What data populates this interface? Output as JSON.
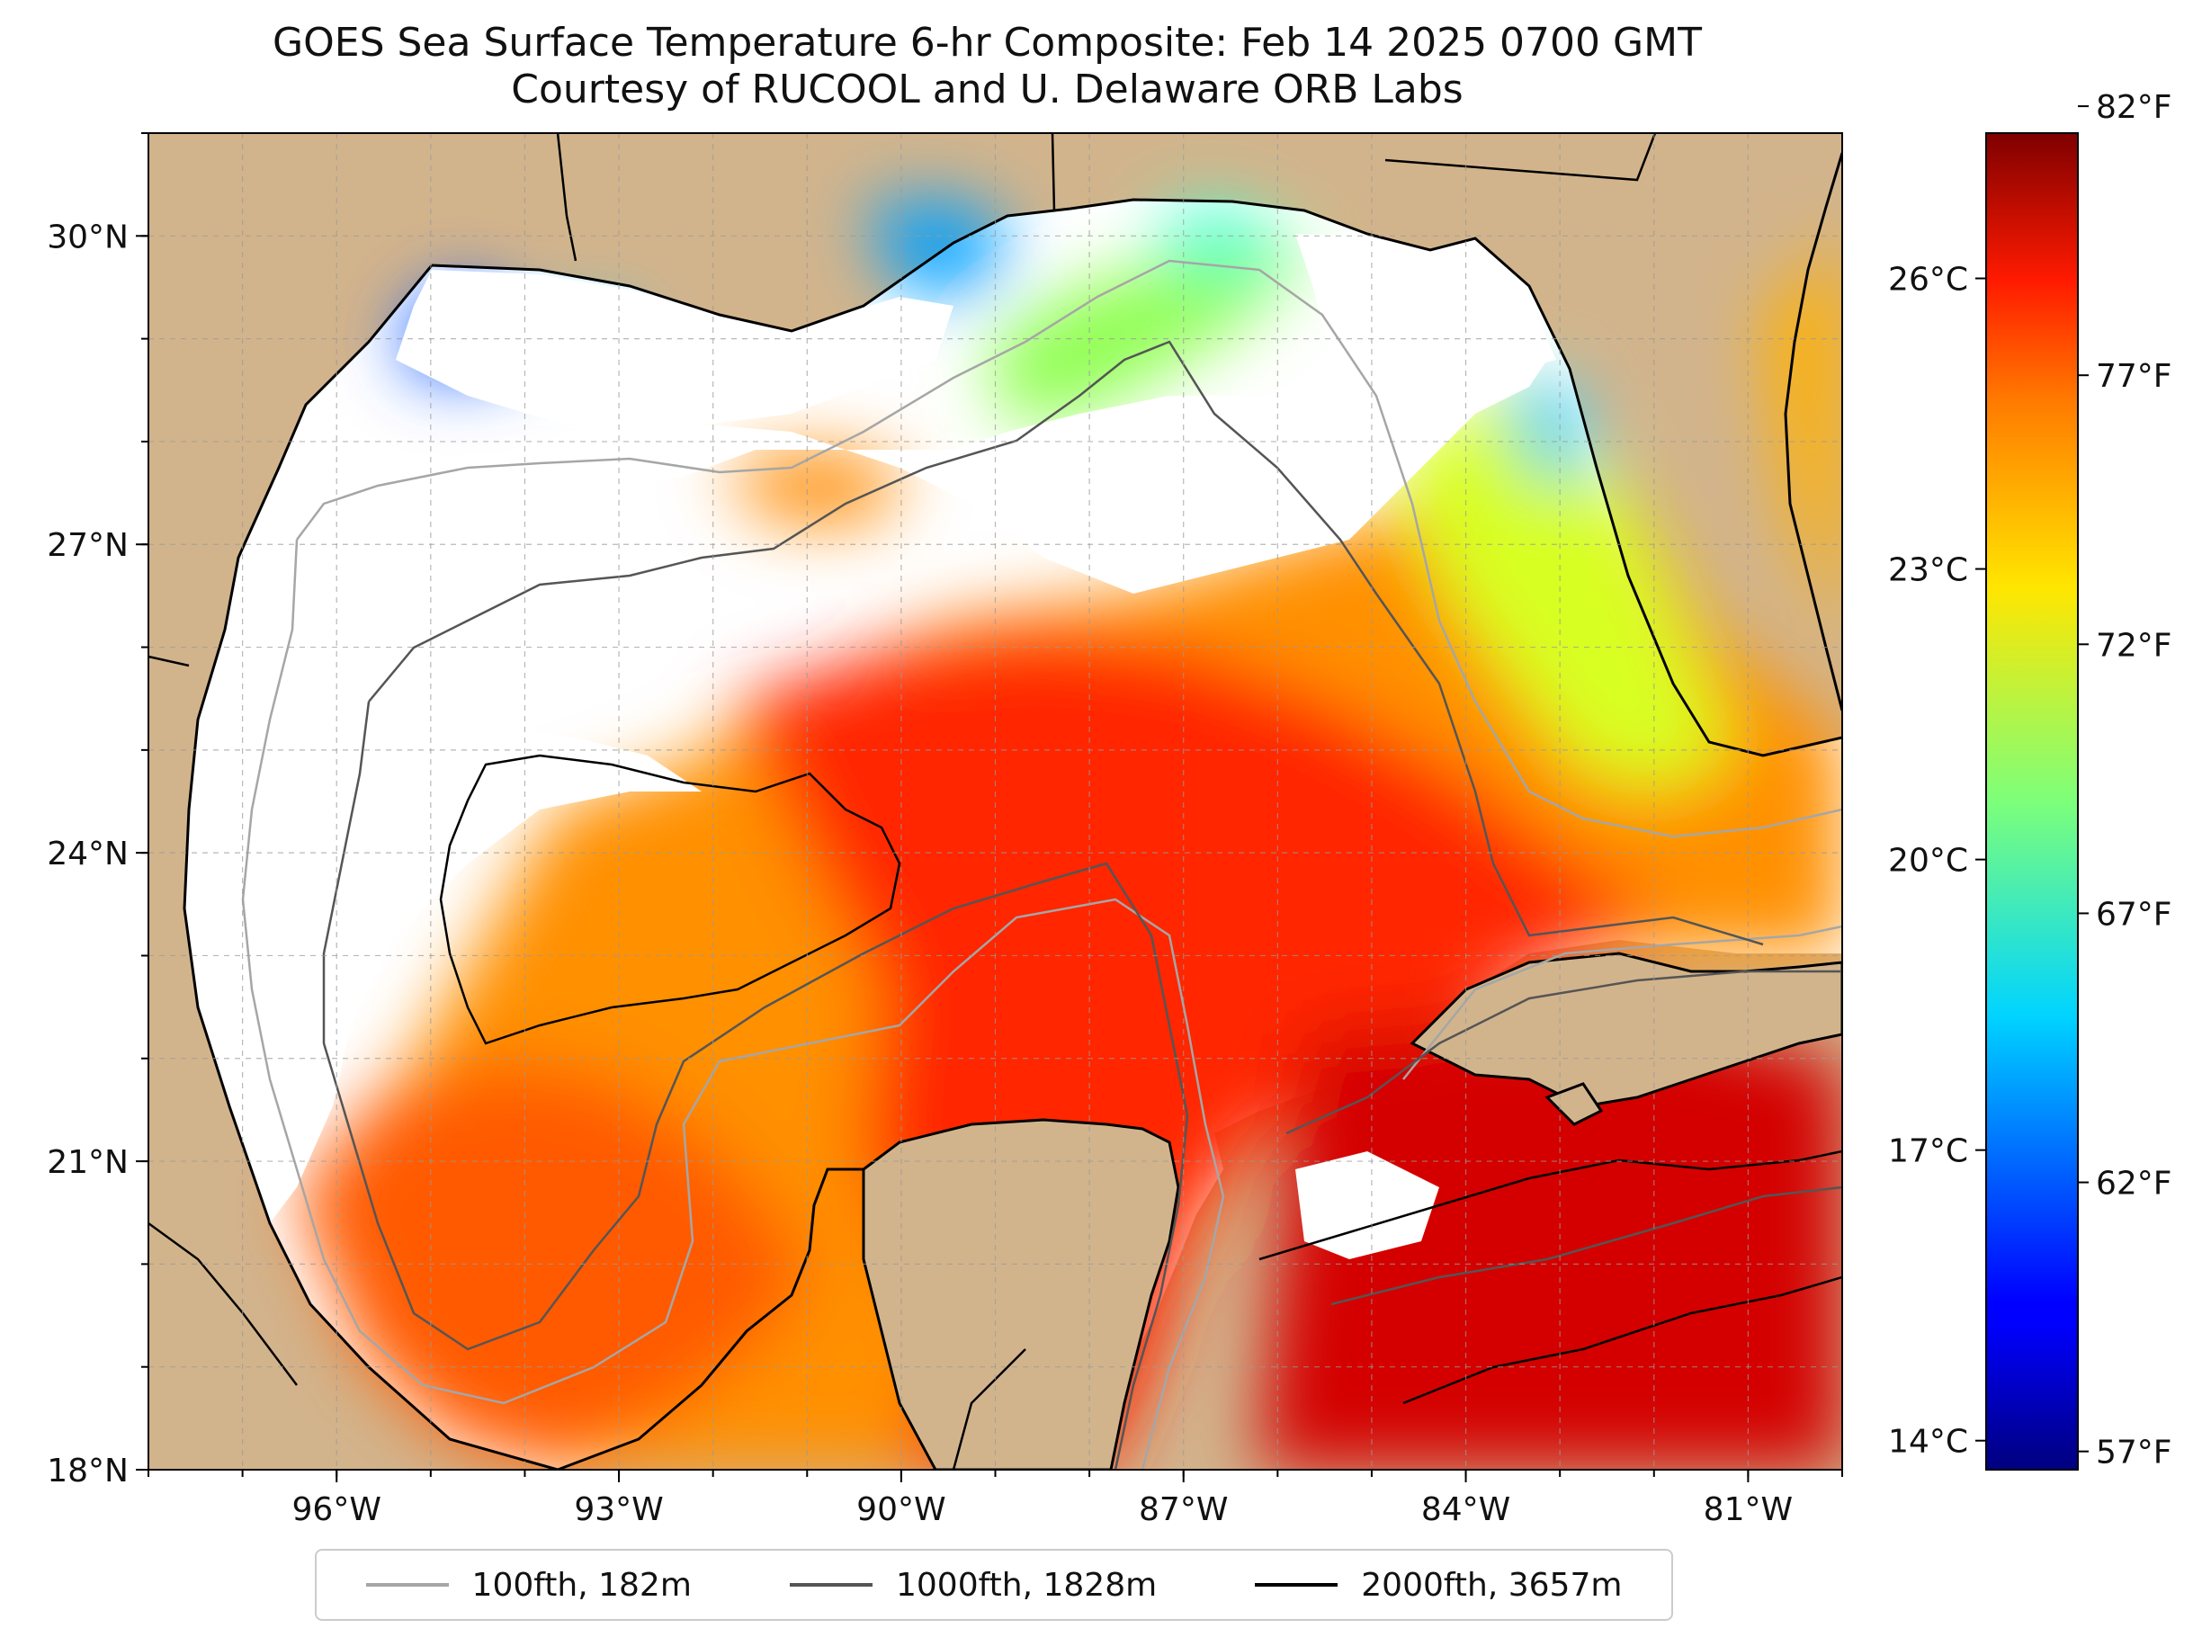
{
  "title": {
    "line1": "GOES Sea Surface Temperature 6-hr Composite: Feb 14 2025 0700 GMT",
    "line2": "Courtesy of RUCOOL and U. Delaware ORB Labs"
  },
  "map": {
    "extent": {
      "lon_min": -98.0,
      "lon_max": -80.0,
      "lat_min": 18.0,
      "lat_max": 31.0
    },
    "colors": {
      "land": "#d2b48c",
      "no_data": "#ffffff",
      "coastline": "#000000",
      "lakes": "#9fb8e0"
    },
    "lon_ticks": [
      {
        "value": -96,
        "label": "96°W"
      },
      {
        "value": -93,
        "label": "93°W"
      },
      {
        "value": -90,
        "label": "90°W"
      },
      {
        "value": -87,
        "label": "87°W"
      },
      {
        "value": -84,
        "label": "84°W"
      },
      {
        "value": -81,
        "label": "81°W"
      }
    ],
    "lat_ticks": [
      {
        "value": 30,
        "label": "30°N"
      },
      {
        "value": 27,
        "label": "27°N"
      },
      {
        "value": 24,
        "label": "24°N"
      },
      {
        "value": 21,
        "label": "21°N"
      },
      {
        "value": 18,
        "label": "18°N"
      }
    ],
    "gridlines": "dashed"
  },
  "colorbar": {
    "colormap": "jet",
    "celsius_range": [
      13.7,
      27.5
    ],
    "celsius_ticks": [
      {
        "value": 14,
        "label": "14°C"
      },
      {
        "value": 17,
        "label": "17°C"
      },
      {
        "value": 20,
        "label": "20°C"
      },
      {
        "value": 23,
        "label": "23°C"
      },
      {
        "value": 26,
        "label": "26°C"
      }
    ],
    "fahrenheit_ticks": [
      {
        "value": 57,
        "label": "57°F"
      },
      {
        "value": 62,
        "label": "62°F"
      },
      {
        "value": 67,
        "label": "67°F"
      },
      {
        "value": 72,
        "label": "72°F"
      },
      {
        "value": 77,
        "label": "77°F"
      },
      {
        "value": 82,
        "label": "82°F"
      }
    ]
  },
  "legend": {
    "items": [
      {
        "label": "100fth, 182m",
        "color": "#a6a6a6"
      },
      {
        "label": "1000fth, 1828m",
        "color": "#555555"
      },
      {
        "label": "2000fth, 3657m",
        "color": "#000000"
      }
    ]
  }
}
